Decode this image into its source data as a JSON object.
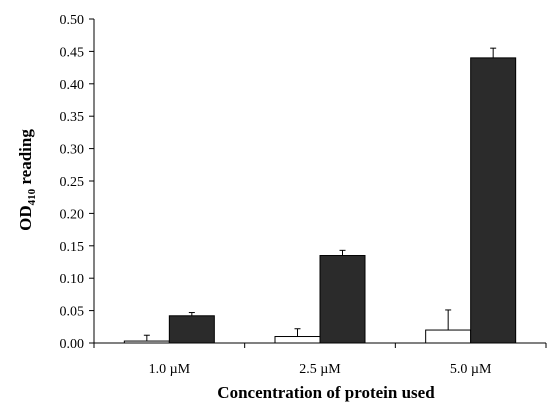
{
  "chart_data": {
    "type": "bar",
    "categories": [
      "1.0 µM",
      "2.5 µM",
      "5.0 µM"
    ],
    "series": [
      {
        "values": [
          0.003,
          0.01,
          0.02
        ],
        "errors": [
          0.009,
          0.012,
          0.031
        ],
        "color": "#ffffff"
      },
      {
        "values": [
          0.042,
          0.135,
          0.44
        ],
        "errors": [
          0.005,
          0.008,
          0.015
        ],
        "color": "#2b2b2b"
      }
    ],
    "xlabel": "Concentration of protein used",
    "ylabel_main": "OD",
    "ylabel_sub": "410",
    "ylabel_tail": " reading",
    "ylim": [
      0,
      0.5
    ],
    "yticks": [
      "0.00",
      "0.05",
      "0.10",
      "0.15",
      "0.20",
      "0.25",
      "0.30",
      "0.35",
      "0.40",
      "0.45",
      "0.50"
    ],
    "grid": false,
    "legend": "none"
  }
}
